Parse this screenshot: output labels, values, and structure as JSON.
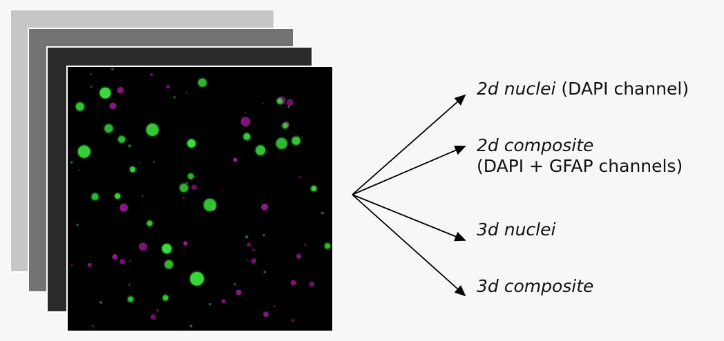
{
  "outputs": [
    {
      "italic": "2d nuclei",
      "plain": " (DAPI channel)"
    },
    {
      "italic": "2d composite",
      "plain": "(DAPI + GFAP channels)"
    },
    {
      "italic": "3d nuclei",
      "plain": ""
    },
    {
      "italic": "3d composite",
      "plain": ""
    }
  ],
  "colors": {
    "nuclei_green": "#3ddc3d",
    "gfap_magenta": "#b01aa8",
    "arrow": "#000000"
  }
}
